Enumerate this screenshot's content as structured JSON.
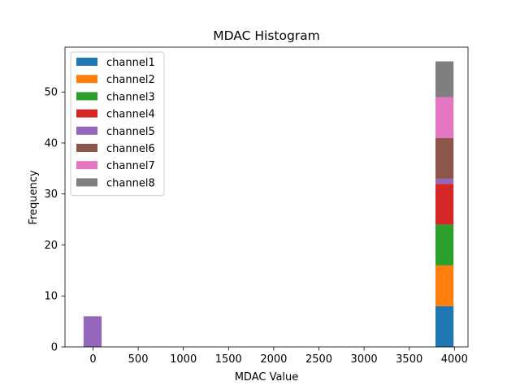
{
  "chart_data": {
    "type": "bar",
    "stacked": true,
    "title": "MDAC Histogram",
    "xlabel": "MDAC Value",
    "ylabel": "Frequency",
    "xlim": [
      -310,
      4150
    ],
    "ylim": [
      0,
      58.8
    ],
    "xticks": [
      0,
      500,
      1000,
      1500,
      2000,
      2500,
      3000,
      3500,
      4000
    ],
    "yticks": [
      0,
      10,
      20,
      30,
      40,
      50
    ],
    "legend_position": "upper-left",
    "bins": [
      {
        "x_start": -105,
        "x_end": 95
      },
      {
        "x_start": 3790,
        "x_end": 3990
      }
    ],
    "series": [
      {
        "name": "channel1",
        "color": "#1f77b4",
        "values": [
          0,
          8
        ]
      },
      {
        "name": "channel2",
        "color": "#ff7f0e",
        "values": [
          0,
          8
        ]
      },
      {
        "name": "channel3",
        "color": "#2ca02c",
        "values": [
          0,
          8
        ]
      },
      {
        "name": "channel4",
        "color": "#d62728",
        "values": [
          0,
          8
        ]
      },
      {
        "name": "channel5",
        "color": "#9467bd",
        "values": [
          6,
          1
        ]
      },
      {
        "name": "channel6",
        "color": "#8c564b",
        "values": [
          0,
          8
        ]
      },
      {
        "name": "channel7",
        "color": "#e377c2",
        "values": [
          0,
          8
        ]
      },
      {
        "name": "channel8",
        "color": "#7f7f7f",
        "values": [
          0,
          7
        ]
      }
    ]
  }
}
